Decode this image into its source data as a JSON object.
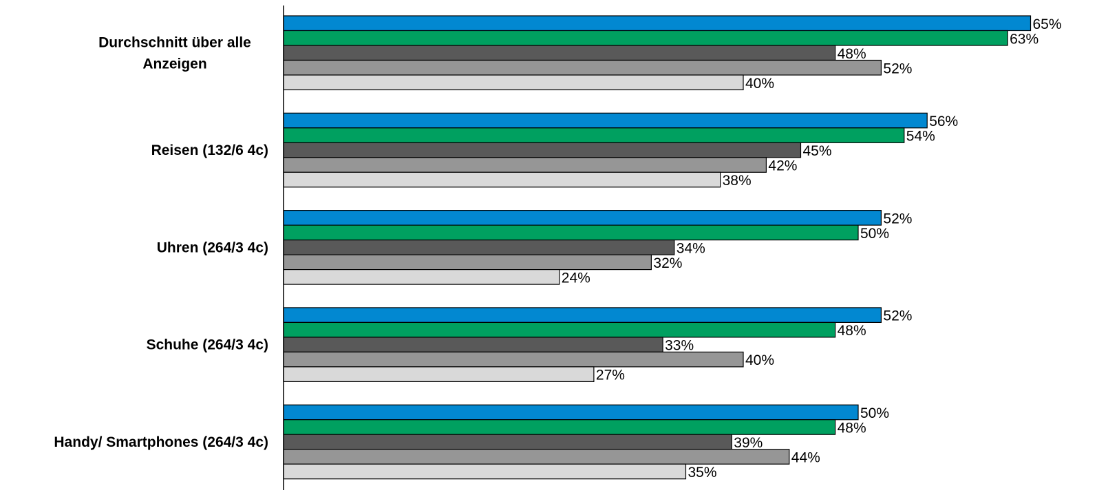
{
  "chart_data": {
    "type": "bar",
    "orientation": "horizontal",
    "categories": [
      [
        "Durchschnitt über alle",
        "Anzeigen"
      ],
      [
        "Reisen (132/6 4c)"
      ],
      [
        "Uhren (264/3 4c)"
      ],
      [
        "Schuhe (264/3 4c)"
      ],
      [
        "Handy/ Smartphones (264/3 4c)"
      ]
    ],
    "series": [
      {
        "color": "#0288d1",
        "values": [
          65,
          56,
          52,
          52,
          50
        ]
      },
      {
        "color": "#00a060",
        "values": [
          63,
          54,
          50,
          48,
          48
        ]
      },
      {
        "color": "#595959",
        "values": [
          48,
          45,
          34,
          33,
          39
        ]
      },
      {
        "color": "#969696",
        "values": [
          52,
          42,
          32,
          40,
          44
        ]
      },
      {
        "color": "#d9d9d9",
        "values": [
          40,
          38,
          24,
          27,
          35
        ]
      }
    ],
    "value_suffix": "%",
    "xlim": [
      0,
      100
    ],
    "grid": false,
    "legend": "none",
    "title": "",
    "xlabel": "",
    "ylabel": ""
  }
}
